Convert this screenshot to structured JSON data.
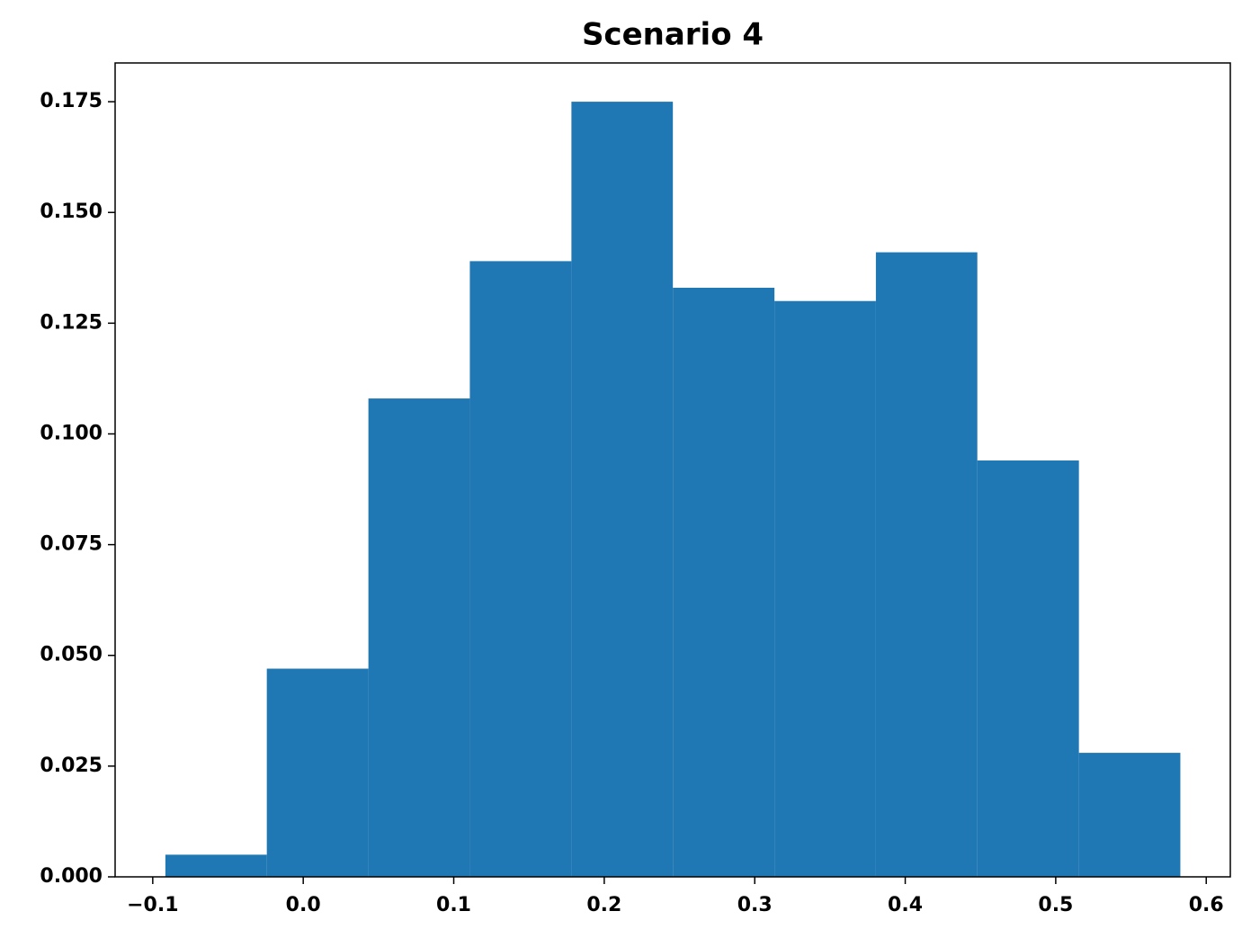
{
  "chart_data": {
    "type": "histogram",
    "title": "Scenario 4",
    "bins": [
      -0.0916,
      -0.0242,
      0.0433,
      0.1107,
      0.1782,
      0.2456,
      0.3131,
      0.3805,
      0.4479,
      0.5154,
      0.5828
    ],
    "values": [
      0.005,
      0.047,
      0.108,
      0.139,
      0.175,
      0.133,
      0.13,
      0.141,
      0.094,
      0.028
    ],
    "color": "#1f77b4",
    "xlim": [
      -0.125,
      0.616
    ],
    "ylim": [
      0,
      0.18375
    ],
    "xticks": [
      {
        "value": -0.1,
        "label": "−0.1"
      },
      {
        "value": 0,
        "label": "0.0"
      },
      0.1,
      0.2,
      0.3,
      0.4,
      0.5,
      0.6
    ],
    "yticks": [
      {
        "value": 0,
        "label": "0.000"
      },
      0.025,
      {
        "value": 0.05,
        "label": "0.050"
      },
      0.075,
      {
        "value": 0.1,
        "label": "0.100"
      },
      0.125,
      {
        "value": 0.15,
        "label": "0.150"
      },
      0.175
    ],
    "grid": false
  }
}
